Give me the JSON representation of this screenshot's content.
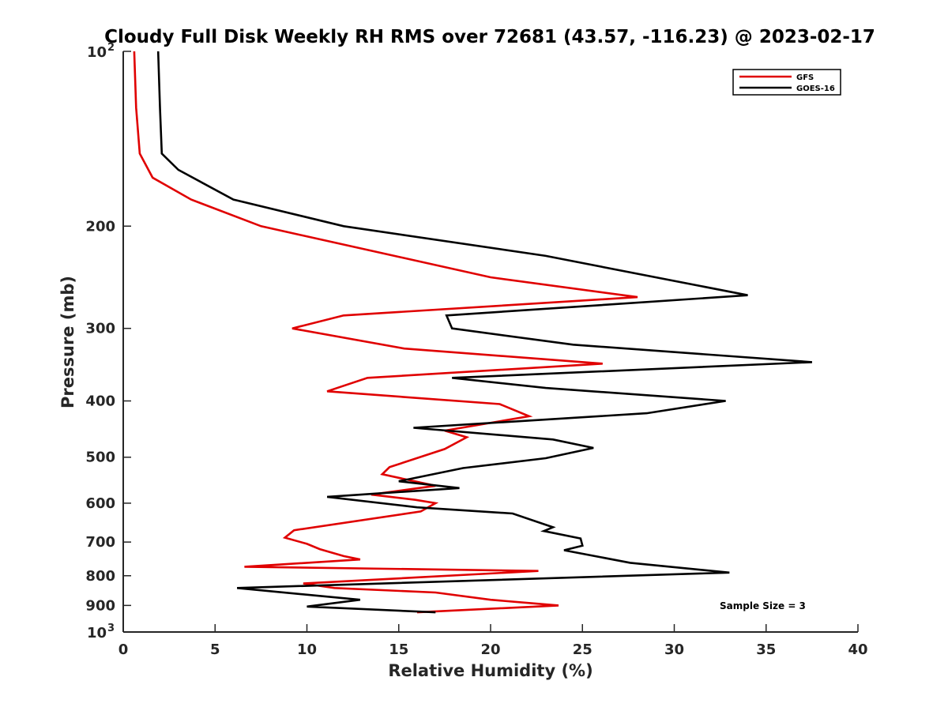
{
  "chart_data": {
    "type": "line",
    "title": "Cloudy Full Disk Weekly RH RMS over 72681 (43.57, -116.23) @ 2023-02-17",
    "xlabel": "Relative Humidity (%)",
    "ylabel": "Pressure (mb)",
    "xlim": [
      0,
      40
    ],
    "ylim": [
      100,
      1000
    ],
    "y_scale": "log",
    "y_reversed": true,
    "grid": false,
    "legend_position": "top-right",
    "x_ticks": [
      0,
      5,
      10,
      15,
      20,
      25,
      30,
      35,
      40
    ],
    "x_tick_labels": [
      "0",
      "5",
      "10",
      "15",
      "20",
      "25",
      "30",
      "35",
      "40"
    ],
    "y_ticks": [
      {
        "value": 100,
        "base": "10",
        "exp": "2"
      },
      {
        "value": 200,
        "label": "200"
      },
      {
        "value": 300,
        "label": "300"
      },
      {
        "value": 400,
        "label": "400"
      },
      {
        "value": 500,
        "label": "500"
      },
      {
        "value": 600,
        "label": "600"
      },
      {
        "value": 700,
        "label": "700"
      },
      {
        "value": 800,
        "label": "800"
      },
      {
        "value": 900,
        "label": "900"
      },
      {
        "value": 1000,
        "base": "10",
        "exp": "3"
      }
    ],
    "annotation": "Sample Size = 3",
    "series": [
      {
        "name": "GFS",
        "color": "#e00000",
        "points": [
          {
            "x": 0.6,
            "y": 100
          },
          {
            "x": 0.7,
            "y": 125
          },
          {
            "x": 0.9,
            "y": 150
          },
          {
            "x": 1.6,
            "y": 165
          },
          {
            "x": 3.7,
            "y": 180
          },
          {
            "x": 7.5,
            "y": 200
          },
          {
            "x": 20.0,
            "y": 245
          },
          {
            "x": 28.0,
            "y": 265
          },
          {
            "x": 12.0,
            "y": 285
          },
          {
            "x": 9.2,
            "y": 300
          },
          {
            "x": 15.3,
            "y": 325
          },
          {
            "x": 26.1,
            "y": 345
          },
          {
            "x": 13.3,
            "y": 365
          },
          {
            "x": 11.1,
            "y": 385
          },
          {
            "x": 20.5,
            "y": 405
          },
          {
            "x": 22.1,
            "y": 425
          },
          {
            "x": 17.5,
            "y": 450
          },
          {
            "x": 18.7,
            "y": 462
          },
          {
            "x": 17.5,
            "y": 484
          },
          {
            "x": 14.5,
            "y": 520
          },
          {
            "x": 14.1,
            "y": 535
          },
          {
            "x": 17.0,
            "y": 560
          },
          {
            "x": 13.5,
            "y": 580
          },
          {
            "x": 15.9,
            "y": 592
          },
          {
            "x": 17.0,
            "y": 600
          },
          {
            "x": 16.2,
            "y": 620
          },
          {
            "x": 9.3,
            "y": 668
          },
          {
            "x": 8.8,
            "y": 688
          },
          {
            "x": 10.0,
            "y": 705
          },
          {
            "x": 10.7,
            "y": 720
          },
          {
            "x": 12.0,
            "y": 740
          },
          {
            "x": 12.9,
            "y": 750
          },
          {
            "x": 6.6,
            "y": 772
          },
          {
            "x": 22.6,
            "y": 785
          },
          {
            "x": 9.8,
            "y": 825
          },
          {
            "x": 11.5,
            "y": 840
          },
          {
            "x": 17.0,
            "y": 855
          },
          {
            "x": 20.0,
            "y": 880
          },
          {
            "x": 23.7,
            "y": 900
          },
          {
            "x": 16.0,
            "y": 925
          }
        ]
      },
      {
        "name": "GOES-16",
        "color": "#000000",
        "points": [
          {
            "x": 1.9,
            "y": 100
          },
          {
            "x": 2.0,
            "y": 125
          },
          {
            "x": 2.1,
            "y": 150
          },
          {
            "x": 3.0,
            "y": 160
          },
          {
            "x": 6.0,
            "y": 180
          },
          {
            "x": 12.0,
            "y": 200
          },
          {
            "x": 23.0,
            "y": 225
          },
          {
            "x": 34.0,
            "y": 263
          },
          {
            "x": 17.6,
            "y": 285
          },
          {
            "x": 17.9,
            "y": 300
          },
          {
            "x": 24.5,
            "y": 320
          },
          {
            "x": 37.5,
            "y": 343
          },
          {
            "x": 17.9,
            "y": 365
          },
          {
            "x": 23.0,
            "y": 380
          },
          {
            "x": 32.8,
            "y": 400
          },
          {
            "x": 28.5,
            "y": 420
          },
          {
            "x": 15.8,
            "y": 445
          },
          {
            "x": 23.4,
            "y": 466
          },
          {
            "x": 25.6,
            "y": 482
          },
          {
            "x": 23.0,
            "y": 502
          },
          {
            "x": 18.5,
            "y": 522
          },
          {
            "x": 15.0,
            "y": 550
          },
          {
            "x": 18.3,
            "y": 565
          },
          {
            "x": 11.1,
            "y": 585
          },
          {
            "x": 16.0,
            "y": 610
          },
          {
            "x": 21.2,
            "y": 625
          },
          {
            "x": 23.4,
            "y": 660
          },
          {
            "x": 22.9,
            "y": 670
          },
          {
            "x": 24.9,
            "y": 690
          },
          {
            "x": 25.0,
            "y": 710
          },
          {
            "x": 24.0,
            "y": 723
          },
          {
            "x": 27.6,
            "y": 760
          },
          {
            "x": 33.0,
            "y": 790
          },
          {
            "x": 6.2,
            "y": 840
          },
          {
            "x": 12.9,
            "y": 880
          },
          {
            "x": 10.0,
            "y": 904
          },
          {
            "x": 17.0,
            "y": 925
          }
        ]
      }
    ]
  }
}
